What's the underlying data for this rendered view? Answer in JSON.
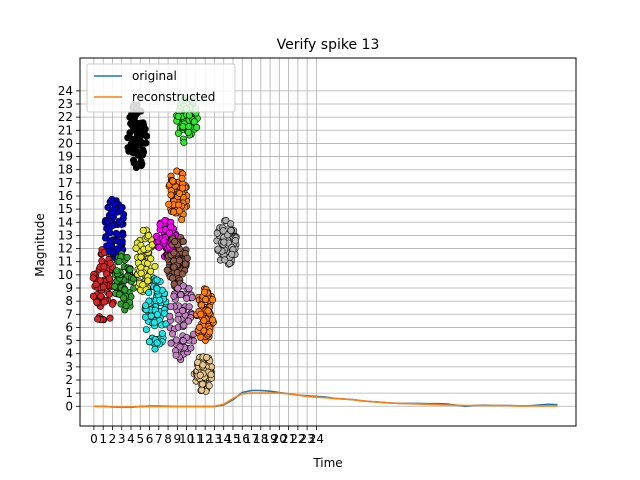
{
  "chart_data": {
    "type": "line",
    "title": "Verify spike 13",
    "xlabel": "Time",
    "ylabel": "Magnitude",
    "x_ticks": [
      "0",
      "1",
      "2",
      "3",
      "4",
      "5",
      "6",
      "7",
      "8",
      "9",
      "10",
      "11",
      "12",
      "13",
      "14",
      "15",
      "16",
      "17",
      "18",
      "19",
      "20",
      "21",
      "22",
      "23",
      "24"
    ],
    "y_ticks": [
      "0",
      "1",
      "2",
      "3",
      "4",
      "5",
      "6",
      "7",
      "8",
      "9",
      "10",
      "11",
      "12",
      "13",
      "14",
      "15",
      "16",
      "17",
      "18",
      "19",
      "20",
      "21",
      "22",
      "23",
      "24"
    ],
    "xlim": [
      -1.5,
      52
    ],
    "ylim": [
      -1.5,
      26.5
    ],
    "grid": true,
    "legend_position": "upper-left",
    "series": [
      {
        "name": "original",
        "color": "#1f77b4",
        "x": [
          0,
          1,
          2,
          3,
          4,
          5,
          6,
          7,
          8,
          9,
          10,
          11,
          12,
          13,
          14,
          15,
          16,
          17,
          18,
          19,
          20,
          21,
          22,
          23,
          24,
          25,
          26,
          27,
          28,
          29,
          30,
          31,
          32,
          33,
          34,
          35,
          36,
          37,
          38,
          39,
          40,
          41,
          42,
          43,
          44,
          45,
          46,
          47,
          48,
          49,
          50
        ],
        "y": [
          0,
          0,
          -0.05,
          -0.08,
          -0.08,
          -0.02,
          0.02,
          0.02,
          0,
          -0.02,
          -0.02,
          -0.02,
          -0.02,
          -0.02,
          0.1,
          0.5,
          1.05,
          1.2,
          1.2,
          1.15,
          1.05,
          0.95,
          0.85,
          0.8,
          0.75,
          0.7,
          0.6,
          0.55,
          0.5,
          0.4,
          0.35,
          0.3,
          0.25,
          0.22,
          0.22,
          0.22,
          0.2,
          0.2,
          0.18,
          0.1,
          0,
          0.05,
          0.08,
          0.06,
          0.05,
          0.05,
          0.02,
          0.04,
          0.1,
          0.15,
          0.12
        ]
      },
      {
        "name": "reconstructed",
        "color": "#ff7f0e",
        "x": [
          0,
          1,
          2,
          3,
          4,
          5,
          6,
          7,
          8,
          9,
          10,
          11,
          12,
          13,
          14,
          15,
          16,
          17,
          18,
          19,
          20,
          21,
          22,
          23,
          24,
          25,
          26,
          27,
          28,
          29,
          30,
          31,
          32,
          33,
          34,
          35,
          36,
          37,
          38,
          39,
          40,
          41,
          42,
          43,
          44,
          45,
          46,
          47,
          48,
          49,
          50
        ],
        "y": [
          0,
          -0.02,
          -0.05,
          -0.05,
          -0.05,
          -0.03,
          -0.02,
          -0.02,
          -0.02,
          -0.02,
          -0.02,
          -0.02,
          -0.02,
          0,
          0.15,
          0.6,
          0.95,
          1.0,
          1.0,
          1.0,
          1.0,
          0.95,
          0.85,
          0.75,
          0.7,
          0.65,
          0.6,
          0.55,
          0.5,
          0.42,
          0.35,
          0.3,
          0.25,
          0.22,
          0.2,
          0.18,
          0.15,
          0.12,
          0.1,
          0.08,
          0.06,
          0.06,
          0.06,
          0.05,
          0.05,
          0.04,
          0.03,
          0.03,
          0.03,
          0.03,
          0.03
        ]
      }
    ],
    "overlay_clusters": [
      {
        "color": "#d62728",
        "cx": 1.0,
        "cy": 9.0,
        "w": 2.4,
        "h": 6.0
      },
      {
        "color": "#0000cc",
        "cx": 2.3,
        "cy": 13.5,
        "w": 2.2,
        "h": 5.0
      },
      {
        "color": "#2ca02c",
        "cx": 3.3,
        "cy": 9.5,
        "w": 2.2,
        "h": 4.5
      },
      {
        "color": "#000000",
        "cx": 4.6,
        "cy": 20.5,
        "w": 2.2,
        "h": 5.0
      },
      {
        "color": "#e6e62e",
        "cx": 5.5,
        "cy": 11.0,
        "w": 2.2,
        "h": 5.0
      },
      {
        "color": "#17e6e6",
        "cx": 6.7,
        "cy": 7.0,
        "w": 2.4,
        "h": 5.5
      },
      {
        "color": "#ff00ff",
        "cx": 7.8,
        "cy": 12.8,
        "w": 2.2,
        "h": 3.0
      },
      {
        "color": "#8b5a4a",
        "cx": 9.0,
        "cy": 11.0,
        "w": 2.4,
        "h": 4.0
      },
      {
        "color": "#ff7f0e",
        "cx": 9.0,
        "cy": 16.0,
        "w": 2.2,
        "h": 4.0
      },
      {
        "color": "#2ee62e",
        "cx": 10.0,
        "cy": 22.0,
        "w": 2.4,
        "h": 4.0
      },
      {
        "color": "#c080c0",
        "cx": 9.5,
        "cy": 6.5,
        "w": 3.0,
        "h": 6.0
      },
      {
        "color": "#ff7f0e",
        "cx": 12.0,
        "cy": 7.0,
        "w": 2.0,
        "h": 4.0
      },
      {
        "color": "#e6c68c",
        "cx": 11.8,
        "cy": 2.5,
        "w": 2.0,
        "h": 3.0
      },
      {
        "color": "#b0b0b0",
        "cx": 14.3,
        "cy": 12.5,
        "w": 2.2,
        "h": 3.5
      }
    ],
    "legend": [
      "original",
      "reconstructed"
    ]
  }
}
